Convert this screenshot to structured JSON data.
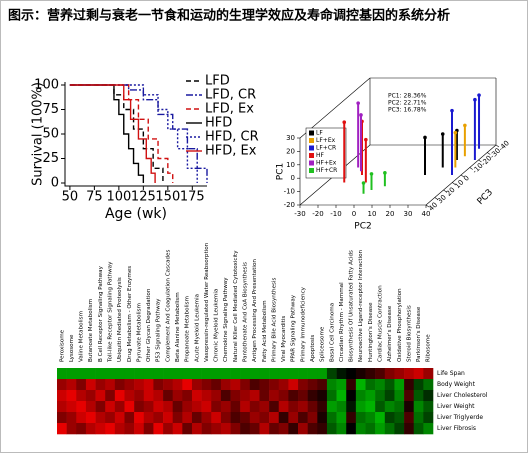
{
  "title": "图示：营养过剩与衰老一节食和运动的生理学效应及寿命调控基因的系统分析",
  "chart_data": [
    {
      "type": "step",
      "xlabel": "Age (wk)",
      "ylabel": "Survival (100%)",
      "xlim": [
        45,
        190
      ],
      "ylim": [
        0,
        100
      ],
      "xticks": [
        50,
        75,
        100,
        125,
        150,
        175
      ],
      "yticks": [
        0,
        25,
        50,
        75,
        100
      ],
      "series": [
        {
          "name": "LFD",
          "color": "#000000",
          "dash": "5,3",
          "x": [
            50,
            85,
            95,
            105,
            115,
            125,
            135,
            145
          ],
          "values": [
            100,
            100,
            90,
            75,
            55,
            35,
            15,
            0
          ]
        },
        {
          "name": "LFD, CR",
          "color": "#1a1aa0",
          "dash": "7,2,2,2",
          "x": [
            50,
            95,
            110,
            125,
            140,
            155,
            170,
            180,
            190
          ],
          "values": [
            100,
            100,
            95,
            85,
            70,
            55,
            35,
            15,
            0
          ]
        },
        {
          "name": "LFD, Ex",
          "color": "#d01010",
          "dash": "5,3",
          "x": [
            50,
            100,
            110,
            120,
            130,
            140,
            150,
            155
          ],
          "values": [
            100,
            100,
            85,
            65,
            45,
            25,
            10,
            0
          ]
        },
        {
          "name": "HFD",
          "color": "#000000",
          "dash": "none",
          "x": [
            50,
            88,
            95,
            100,
            105,
            110,
            115,
            120,
            125
          ],
          "values": [
            100,
            100,
            85,
            70,
            50,
            35,
            20,
            8,
            0
          ]
        },
        {
          "name": "HFD, CR",
          "color": "#1a1aa0",
          "dash": "2,2",
          "x": [
            50,
            110,
            125,
            140,
            150,
            160,
            170,
            180
          ],
          "values": [
            100,
            100,
            90,
            75,
            55,
            35,
            15,
            0
          ]
        },
        {
          "name": "HFD, Ex",
          "color": "#d01010",
          "dash": "none",
          "x": [
            50,
            95,
            105,
            112,
            120,
            128,
            133,
            137
          ],
          "values": [
            100,
            100,
            85,
            65,
            45,
            25,
            10,
            0
          ]
        }
      ]
    },
    {
      "type": "scatter3d",
      "xlabel": "PC2",
      "ylabel": "PC1",
      "zlabel": "PC3",
      "annotations": [
        "PC1: 28.36%",
        "PC2: 22.71%",
        "PC3: 16.78%"
      ],
      "xlim": [
        -30,
        40
      ],
      "ylim": [
        -20,
        30
      ],
      "zlim": [
        -40,
        40
      ],
      "xticks": [
        -30,
        -20,
        -10,
        0,
        10,
        20,
        30,
        40
      ],
      "yticks": [
        -20,
        -10,
        0,
        10,
        20,
        30
      ],
      "zticks": [
        -40,
        -30,
        -20,
        -10,
        0,
        10,
        20,
        30,
        40
      ],
      "series": [
        {
          "name": "LF",
          "color": "#000000",
          "x": [
            25,
            28,
            20
          ],
          "z": [
            -10,
            -20,
            0
          ],
          "y": [
            5,
            2,
            8
          ]
        },
        {
          "name": "LF+Ex",
          "color": "#e8a000",
          "x": [
            30,
            32
          ],
          "z": [
            -25,
            -10
          ],
          "y": [
            3,
            6
          ]
        },
        {
          "name": "LF+CR",
          "color": "#1a1ad0",
          "x": [
            35,
            38,
            33
          ],
          "z": [
            0,
            -20,
            -35
          ],
          "y": [
            28,
            25,
            20
          ]
        },
        {
          "name": "HF",
          "color": "#e01010",
          "x": [
            -15,
            -8,
            -20
          ],
          "z": [
            0,
            10,
            10
          ],
          "y": [
            20,
            12,
            25
          ]
        },
        {
          "name": "HF+Ex",
          "color": "#a020c0",
          "x": [
            -22,
            -18
          ],
          "z": [
            -10,
            -5
          ],
          "y": [
            28,
            22
          ]
        },
        {
          "name": "HF+CR",
          "color": "#20c020",
          "x": [
            0,
            5,
            -2
          ],
          "z": [
            20,
            15,
            25
          ],
          "y": [
            -8,
            -10,
            -12
          ]
        }
      ]
    },
    {
      "type": "heatmap",
      "colorscale": {
        "negative": "#00e000",
        "zero": "#000000",
        "positive": "#ff0000"
      },
      "columns": [
        "Peroxisome",
        "Lysosome",
        "Valine Metabolism",
        "Butanoate Metabolism",
        "B Cell Receptor Signaling Pathway",
        "Toll-like Receptor Signaling Pathway",
        "Ubiquitin Mediated Proteolysis",
        "Drug Metabolism - Other Enzymes",
        "Pyruvate Metabolism",
        "Other Glycan Degradation",
        "P53 Signaling Pathway",
        "Complement And Coagulation Cascades",
        "Beta Alanine Metabolism",
        "Propanoate Metabolism",
        "Acute Myeloid Leukemia",
        "Vasopressin-regulated Water Reabsorption",
        "Chronic Myeloid Leukemia",
        "Chemokine Signaling Pathway",
        "Natural Killer Cell Mediated Cytotoxicity",
        "Pantothenate And CoA Biosynthesis",
        "Antigen Processing And Presentation",
        "Fatty Acid Metabolism",
        "Primary Bile Acid Biosynthesis",
        "Viral Myocarditis",
        "PPAR Signaling Pathway",
        "Primary Immunodeficiency",
        "Apoptosis",
        "Spliceosome",
        "Basal Cell Carcinoma",
        "Circadian Rhythm - Mammal",
        "Biosynthesis Of Unsaturated Fatty Acids",
        "Neuroactive Ligand-receptor Interaction",
        "Huntington's Disease",
        "Cardiac Muscle Contraction",
        "Alzheimer's Disease",
        "Oxidative Phosphorylation",
        "Steroid Biosynthesis",
        "Parkinson's Disease",
        "Ribosome"
      ],
      "rows": [
        "Life Span",
        "Body Weight",
        "Liver Cholesterol",
        "Liver Weight",
        "Liver Triglyerde",
        "Liver Fibrosis"
      ],
      "values": [
        [
          -0.7,
          -0.7,
          -0.7,
          -0.7,
          -0.7,
          -0.7,
          -0.7,
          -0.7,
          -0.7,
          -0.7,
          -0.7,
          -0.7,
          -0.7,
          -0.7,
          -0.7,
          -0.7,
          -0.7,
          -0.7,
          -0.7,
          -0.7,
          -0.7,
          -0.7,
          -0.7,
          -0.7,
          -0.7,
          -0.7,
          -0.7,
          -0.7,
          -0.3,
          -0.1,
          0,
          0.1,
          0.2,
          0.3,
          0.5,
          0.6,
          0.7,
          0.8,
          0.6
        ],
        [
          0.6,
          0.7,
          0.5,
          0.8,
          0.6,
          0.7,
          0.5,
          0.6,
          0.7,
          0.8,
          0.5,
          0.6,
          0.7,
          0.9,
          0.6,
          0.5,
          0.4,
          0.6,
          0.7,
          0.5,
          0.3,
          0.4,
          0.5,
          0.6,
          0.8,
          0.5,
          0.4,
          0.3,
          -0.6,
          -0.7,
          0.2,
          -0.8,
          -0.5,
          -0.6,
          -0.4,
          -0.7,
          0.2,
          -0.3,
          -0.5
        ],
        [
          0.8,
          0.9,
          0.7,
          0.6,
          0.8,
          0.5,
          0.9,
          0.7,
          0.6,
          0.8,
          0.7,
          0.4,
          0.6,
          0.5,
          0.8,
          0.7,
          0.6,
          0.3,
          0.5,
          0.6,
          0.7,
          0.4,
          0.6,
          0.5,
          0.3,
          0.4,
          0.2,
          0.1,
          -0.5,
          -0.8,
          0,
          -0.6,
          -0.7,
          -0.5,
          -0.3,
          -0.6,
          0.3,
          -0.4,
          -0.2
        ],
        [
          0.7,
          0.8,
          0.9,
          0.7,
          0.5,
          0.8,
          0.6,
          0.9,
          0.5,
          0.6,
          0.8,
          0.7,
          0.4,
          0.6,
          0.7,
          0.8,
          0.5,
          0.6,
          0.4,
          0.7,
          0.5,
          0.6,
          0.3,
          0.7,
          0.5,
          0.6,
          0.4,
          0.2,
          -0.7,
          -0.6,
          -0.1,
          -0.7,
          -0.8,
          -0.4,
          -0.6,
          -0.5,
          0.1,
          -0.6,
          -0.4
        ],
        [
          0.5,
          0.6,
          0.8,
          0.9,
          0.7,
          0.6,
          0.8,
          0.5,
          0.9,
          0.7,
          0.6,
          0.8,
          0.5,
          0.7,
          0.4,
          0.6,
          0.8,
          0.5,
          0.3,
          0.4,
          0.6,
          0.5,
          0.7,
          0.2,
          0.6,
          0.3,
          0.5,
          0.1,
          -0.5,
          -0.7,
          0.2,
          -0.5,
          -0.6,
          -0.8,
          -0.3,
          -0.4,
          0.3,
          -0.5,
          -0.3
        ],
        [
          0.9,
          0.6,
          0.5,
          0.7,
          0.8,
          0.9,
          0.7,
          0.6,
          0.8,
          0.5,
          0.9,
          0.6,
          0.8,
          0.4,
          0.7,
          0.5,
          0.6,
          0.7,
          0.5,
          0.3,
          0.4,
          0.7,
          0.4,
          0.5,
          0.2,
          0.6,
          0.3,
          0.2,
          -0.4,
          -0.6,
          0,
          -0.6,
          -0.5,
          -0.7,
          -0.5,
          -0.3,
          0.2,
          -0.4,
          -0.6
        ]
      ]
    }
  ]
}
